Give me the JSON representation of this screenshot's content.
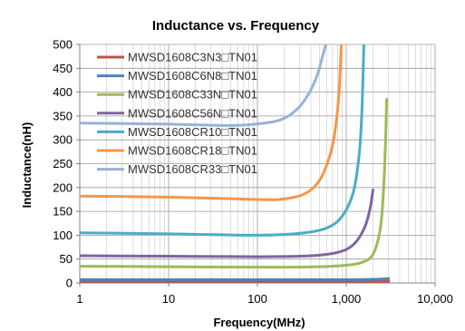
{
  "chart_data": {
    "type": "line",
    "title": "Inductance vs. Frequency",
    "xlabel": "Frequency(MHz)",
    "ylabel": "Inductance(nH)",
    "x_scale": "log",
    "xlim": [
      1,
      10000
    ],
    "ylim": [
      0,
      500
    ],
    "x_ticks": [
      1,
      10,
      100,
      1000,
      10000
    ],
    "x_tick_labels": [
      "1",
      "10",
      "100",
      "1,000",
      "10,000"
    ],
    "y_ticks": [
      0,
      50,
      100,
      150,
      200,
      250,
      300,
      350,
      400,
      450,
      500
    ],
    "y_tick_labels": [
      "0",
      "50",
      "100",
      "150",
      "200",
      "250",
      "300",
      "350",
      "400",
      "450",
      "500"
    ],
    "grid": true,
    "legend_position": "top-left",
    "series": [
      {
        "name": "MWSD1608C3N3□TN01",
        "color": "#c0504d",
        "points": [
          [
            1,
            3.3
          ],
          [
            100,
            3.3
          ],
          [
            1000,
            3.3
          ],
          [
            3000,
            3.3
          ]
        ]
      },
      {
        "name": "MWSD1608C6N8□TN01",
        "color": "#4f81bd",
        "points": [
          [
            1,
            6.8
          ],
          [
            100,
            6.8
          ],
          [
            1000,
            6.9
          ],
          [
            2000,
            7.5
          ],
          [
            3000,
            9
          ]
        ]
      },
      {
        "name": "MWSD1608C33N□TN01",
        "color": "#9bbb59",
        "points": [
          [
            1,
            35
          ],
          [
            10,
            34
          ],
          [
            100,
            33
          ],
          [
            500,
            34
          ],
          [
            1000,
            37
          ],
          [
            1500,
            43
          ],
          [
            2000,
            60
          ],
          [
            2400,
            110
          ],
          [
            2600,
            180
          ],
          [
            2750,
            280
          ],
          [
            2850,
            385
          ]
        ]
      },
      {
        "name": "MWSD1608C56N□TN01",
        "color": "#8064a2",
        "points": [
          [
            1,
            57
          ],
          [
            10,
            56
          ],
          [
            100,
            55
          ],
          [
            400,
            57
          ],
          [
            800,
            64
          ],
          [
            1200,
            80
          ],
          [
            1600,
            115
          ],
          [
            1850,
            155
          ],
          [
            2000,
            195
          ]
        ]
      },
      {
        "name": "MWSD1608CR10□TN01",
        "color": "#4bacc6",
        "points": [
          [
            1,
            105
          ],
          [
            10,
            103
          ],
          [
            100,
            100
          ],
          [
            300,
            104
          ],
          [
            600,
            115
          ],
          [
            900,
            140
          ],
          [
            1200,
            190
          ],
          [
            1400,
            270
          ],
          [
            1500,
            360
          ],
          [
            1580,
            500
          ]
        ]
      },
      {
        "name": "MWSD1608CR18□TN01",
        "color": "#f79646",
        "points": [
          [
            1,
            182
          ],
          [
            10,
            180
          ],
          [
            100,
            175
          ],
          [
            200,
            176
          ],
          [
            350,
            188
          ],
          [
            500,
            215
          ],
          [
            650,
            265
          ],
          [
            750,
            320
          ],
          [
            830,
            400
          ],
          [
            880,
            500
          ]
        ]
      },
      {
        "name": "MWSD1608CR33□TN01",
        "color": "#95b3d7",
        "points": [
          [
            1,
            335
          ],
          [
            10,
            333
          ],
          [
            50,
            330
          ],
          [
            120,
            335
          ],
          [
            200,
            345
          ],
          [
            300,
            370
          ],
          [
            400,
            405
          ],
          [
            480,
            440
          ],
          [
            550,
            480
          ],
          [
            590,
            500
          ]
        ]
      }
    ]
  }
}
